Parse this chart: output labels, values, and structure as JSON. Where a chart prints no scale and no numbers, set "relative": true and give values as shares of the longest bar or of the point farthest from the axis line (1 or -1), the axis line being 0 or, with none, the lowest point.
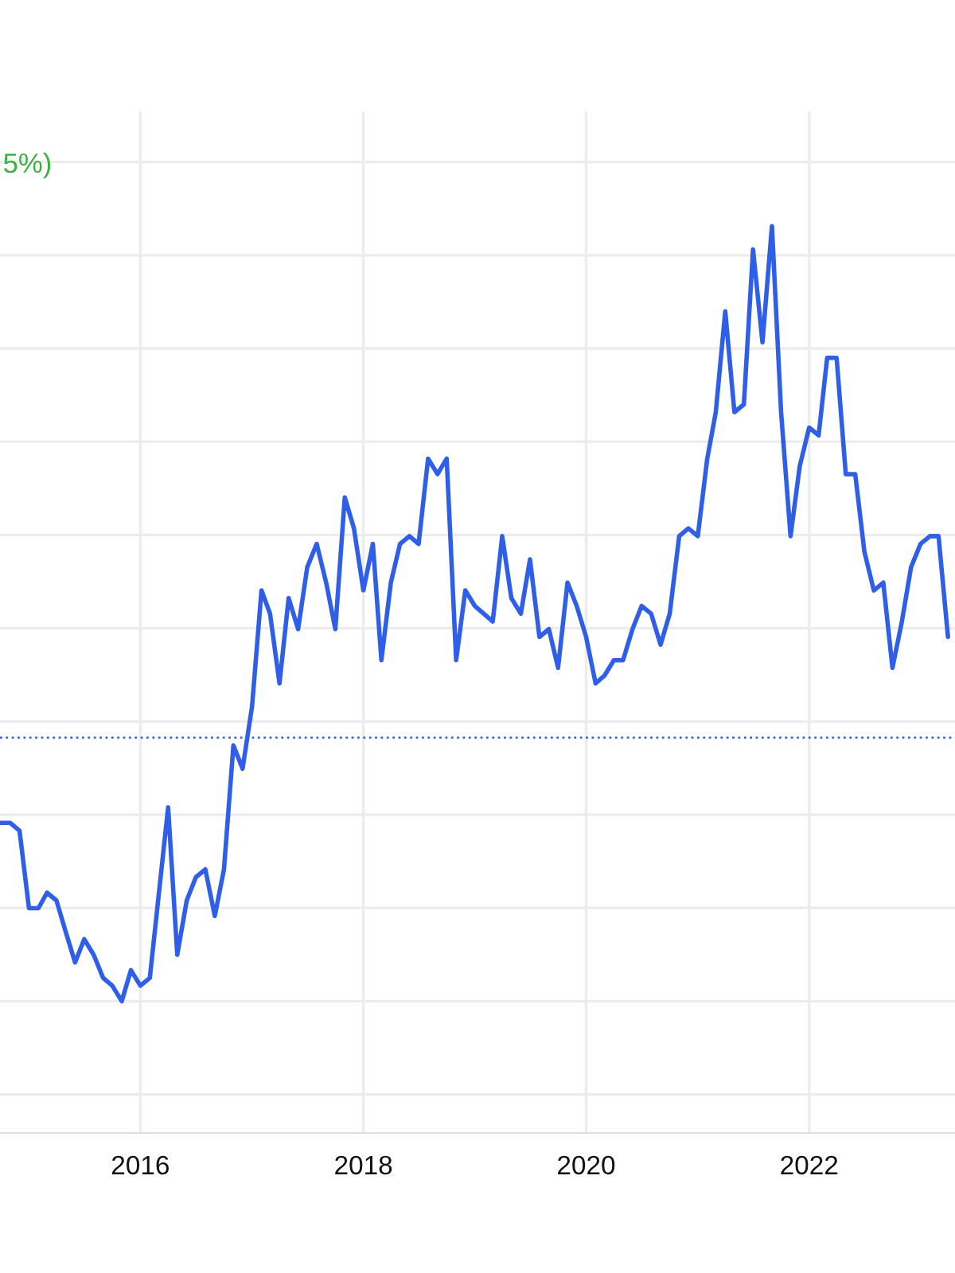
{
  "chart_data": {
    "type": "line",
    "relative": true,
    "grid": true,
    "legend": false,
    "marker": "none",
    "line_style": "solid",
    "annotations": [
      "5%)"
    ],
    "xlim": [
      "2014-09-28",
      "2023-04-24"
    ],
    "xticks": [
      "2016",
      "2018",
      "2020",
      "2022"
    ],
    "ref_lines": [
      {
        "axis": "y",
        "value": 0.34,
        "color": "#2f5fe8",
        "line_style": "dotted"
      }
    ],
    "series": [
      {
        "color": "#2f5fe8",
        "x": [
          "2014-10",
          "2014-11",
          "2014-12",
          "2015-01",
          "2015-02",
          "2015-03",
          "2015-04",
          "2015-05",
          "2015-06",
          "2015-07",
          "2015-08",
          "2015-09",
          "2015-10",
          "2015-11",
          "2015-12",
          "2016-01",
          "2016-02",
          "2016-04",
          "2016-05",
          "2016-06",
          "2016-07",
          "2016-08",
          "2016-09",
          "2016-10",
          "2016-11",
          "2016-12",
          "2017-01",
          "2017-02",
          "2017-03",
          "2017-04",
          "2017-05",
          "2017-06",
          "2017-07",
          "2017-08",
          "2017-09",
          "2017-10",
          "2017-11",
          "2017-12",
          "2018-01",
          "2018-02",
          "2018-03",
          "2018-04",
          "2018-05",
          "2018-06",
          "2018-07",
          "2018-08",
          "2018-09",
          "2018-10",
          "2018-11",
          "2018-12",
          "2019-01",
          "2019-03",
          "2019-04",
          "2019-05",
          "2019-06",
          "2019-07",
          "2019-08",
          "2019-09",
          "2019-10",
          "2019-11",
          "2019-12",
          "2020-01",
          "2020-02",
          "2020-03",
          "2020-04",
          "2020-05",
          "2020-06",
          "2020-07",
          "2020-08",
          "2020-09",
          "2020-10",
          "2020-11",
          "2020-12",
          "2021-01",
          "2021-02",
          "2021-03",
          "2021-04",
          "2021-05",
          "2021-06",
          "2021-07",
          "2021-08",
          "2021-09",
          "2021-10",
          "2021-11",
          "2021-12",
          "2022-01",
          "2022-02",
          "2022-03",
          "2022-04",
          "2022-05",
          "2022-06",
          "2022-07",
          "2022-08",
          "2022-09",
          "2022-10",
          "2022-11",
          "2022-12",
          "2023-01",
          "2023-02",
          "2023-03",
          "2023-04"
        ],
        "values": [
          0.23,
          0.23,
          0.22,
          0.12,
          0.12,
          0.14,
          0.13,
          0.09,
          0.05,
          0.08,
          0.06,
          0.03,
          0.02,
          0,
          0.04,
          0.02,
          0.03,
          0.25,
          0.06,
          0.13,
          0.16,
          0.17,
          0.11,
          0.17,
          0.33,
          0.3,
          0.38,
          0.53,
          0.5,
          0.41,
          0.52,
          0.48,
          0.56,
          0.59,
          0.54,
          0.48,
          0.65,
          0.61,
          0.53,
          0.59,
          0.44,
          0.54,
          0.59,
          0.6,
          0.59,
          0.7,
          0.68,
          0.7,
          0.44,
          0.53,
          0.51,
          0.49,
          0.6,
          0.52,
          0.5,
          0.57,
          0.47,
          0.48,
          0.43,
          0.54,
          0.51,
          0.47,
          0.41,
          0.42,
          0.44,
          0.44,
          0.48,
          0.51,
          0.5,
          0.46,
          0.5,
          0.6,
          0.61,
          0.6,
          0.7,
          0.76,
          0.89,
          0.76,
          0.77,
          0.97,
          0.85,
          1,
          0.76,
          0.6,
          0.69,
          0.74,
          0.73,
          0.83,
          0.83,
          0.68,
          0.68,
          0.58,
          0.53,
          0.54,
          0.43,
          0.49,
          0.56,
          0.59,
          0.6,
          0.6,
          0.47
        ]
      }
    ]
  }
}
